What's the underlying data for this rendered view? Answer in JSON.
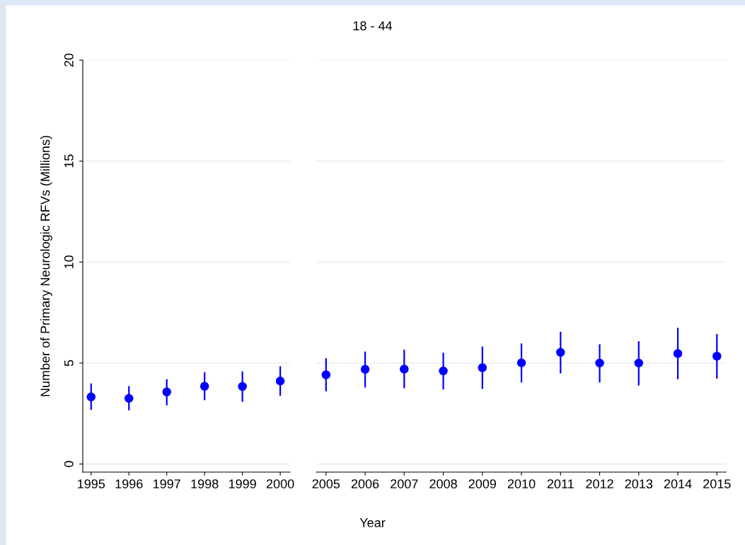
{
  "chart_data": [
    {
      "type": "scatter",
      "xlabel": "Year",
      "ylabel": "Number of Primary Neurologic RFVs (Millions)",
      "categories": [
        "1995",
        "1996",
        "1997",
        "1998",
        "1999",
        "2000"
      ],
      "ylim": [
        -0.4,
        20
      ],
      "yticks": [
        0,
        5,
        10,
        15,
        20
      ],
      "grid": "y",
      "marker": "circle",
      "series": [
        {
          "color": "#0000ff",
          "values": [
            3.32,
            3.25,
            3.57,
            3.85,
            3.84,
            4.11
          ],
          "errors": [
            [
              2.68,
              3.99
            ],
            [
              2.66,
              3.86
            ],
            [
              2.91,
              4.2
            ],
            [
              3.16,
              4.55
            ],
            [
              3.08,
              4.59
            ],
            [
              3.38,
              4.84
            ]
          ]
        }
      ]
    },
    {
      "type": "scatter",
      "title": "18 - 44",
      "categories": [
        "2005",
        "2006",
        "2007",
        "2008",
        "2009",
        "2010",
        "2011",
        "2012",
        "2013",
        "2014",
        "2015"
      ],
      "ylim": [
        -0.4,
        20
      ],
      "yticks": [
        0,
        5,
        10,
        15,
        20
      ],
      "grid": "y",
      "marker": "circle",
      "tick_labels": "x",
      "series": [
        {
          "color": "#0000ff",
          "values": [
            4.42,
            4.69,
            4.7,
            4.61,
            4.77,
            5.01,
            5.53,
            5.0,
            5.0,
            5.47,
            5.34
          ],
          "errors": [
            [
              3.6,
              5.24
            ],
            [
              3.79,
              5.57
            ],
            [
              3.75,
              5.66
            ],
            [
              3.69,
              5.51
            ],
            [
              3.72,
              5.82
            ],
            [
              4.04,
              5.97
            ],
            [
              4.49,
              6.55
            ],
            [
              4.04,
              5.93
            ],
            [
              3.89,
              6.08
            ],
            [
              4.2,
              6.75
            ],
            [
              4.23,
              6.44
            ]
          ]
        }
      ]
    }
  ]
}
